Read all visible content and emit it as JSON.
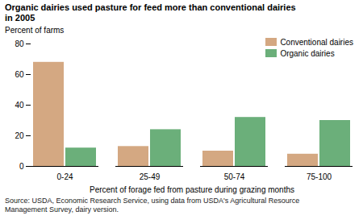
{
  "chart_data": {
    "type": "bar",
    "title": "Organic dairies used pasture for feed more than conventional dairies\nin 2005",
    "categories": [
      "0-24",
      "25-49",
      "50-74",
      "75-100"
    ],
    "series": [
      {
        "name": "Conventional dairies",
        "color": "#D4A882",
        "values": [
          68,
          13,
          10,
          8
        ]
      },
      {
        "name": "Organic dairies",
        "color": "#6BAF7A",
        "values": [
          12,
          24,
          32,
          30
        ]
      }
    ],
    "ylabel": "Percent of farms",
    "xlabel": "Percent of forage fed from pasture during grazing months",
    "source": "Source: USDA, Economic Research Service, using data from USDA's Agricultural Resource\nManagement Survey, dairy version.",
    "ylim": [
      0,
      80
    ],
    "yticks": [
      0,
      20,
      40,
      60,
      80
    ],
    "grid": false,
    "legend": "upper right"
  }
}
